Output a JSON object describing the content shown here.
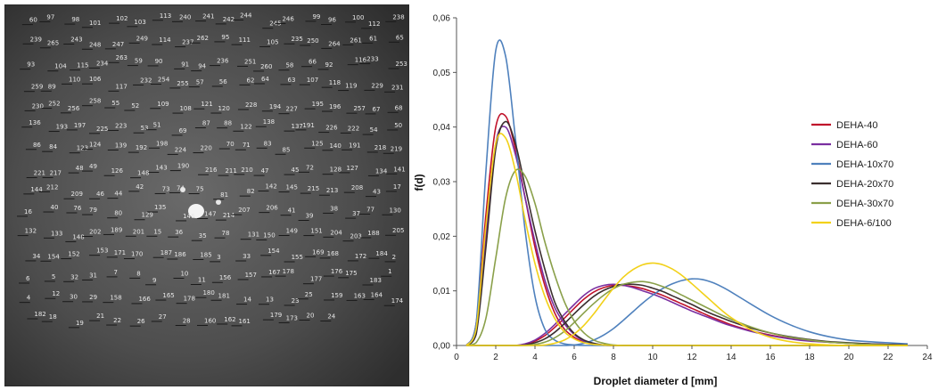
{
  "photo": {
    "description_icon": "droplet-photo-icon",
    "labels": [
      "60",
      "97",
      "98",
      "101",
      "102",
      "103",
      "113",
      "240",
      "241",
      "242",
      "244",
      "245",
      "246",
      "99",
      "96",
      "100",
      "112",
      "238",
      "239",
      "265",
      "243",
      "248",
      "247",
      "249",
      "114",
      "237",
      "262",
      "95",
      "111",
      "105",
      "235",
      "250",
      "264",
      "261",
      "61",
      "65",
      "93",
      "104",
      "115",
      "234",
      "263",
      "59",
      "90",
      "91",
      "94",
      "236",
      "251",
      "260",
      "58",
      "66",
      "92",
      "116",
      "233",
      "253",
      "259",
      "89",
      "110",
      "106",
      "117",
      "232",
      "254",
      "255",
      "57",
      "56",
      "62",
      "64",
      "63",
      "107",
      "118",
      "119",
      "229",
      "231",
      "230",
      "252",
      "256",
      "258",
      "55",
      "52",
      "109",
      "108",
      "121",
      "120",
      "228",
      "194",
      "227",
      "195",
      "196",
      "257",
      "67",
      "68",
      "136",
      "193",
      "197",
      "225",
      "223",
      "53",
      "51",
      "69",
      "87",
      "88",
      "122",
      "138",
      "137",
      "191",
      "226",
      "222",
      "54",
      "50",
      "86",
      "84",
      "123",
      "124",
      "139",
      "192",
      "198",
      "224",
      "220",
      "70",
      "71",
      "83",
      "85",
      "125",
      "140",
      "191",
      "218",
      "219",
      "221",
      "217",
      "48",
      "49",
      "126",
      "148",
      "143",
      "190",
      "216",
      "211",
      "210",
      "47",
      "45",
      "72",
      "128",
      "127",
      "134",
      "141",
      "144",
      "212",
      "209",
      "46",
      "44",
      "42",
      "73",
      "74",
      "75",
      "81",
      "82",
      "142",
      "145",
      "215",
      "213",
      "208",
      "43",
      "17",
      "16",
      "40",
      "76",
      "79",
      "80",
      "129",
      "135",
      "146",
      "147",
      "214",
      "207",
      "206",
      "41",
      "39",
      "38",
      "37",
      "77",
      "130",
      "132",
      "133",
      "148",
      "202",
      "189",
      "201",
      "15",
      "36",
      "35",
      "78",
      "131",
      "150",
      "149",
      "151",
      "204",
      "203",
      "188",
      "205",
      "34",
      "154",
      "152",
      "153",
      "171",
      "170",
      "187",
      "186",
      "185",
      "3",
      "33",
      "154",
      "155",
      "169",
      "168",
      "172",
      "184",
      "2",
      "6",
      "5",
      "32",
      "31",
      "7",
      "8",
      "9",
      "10",
      "11",
      "156",
      "157",
      "167",
      "178",
      "177",
      "176",
      "175",
      "183",
      "1",
      "4",
      "12",
      "30",
      "29",
      "158",
      "166",
      "165",
      "178",
      "180",
      "181",
      "14",
      "13",
      "23",
      "25",
      "159",
      "163",
      "164",
      "174",
      "182",
      "18",
      "19",
      "21",
      "22",
      "26",
      "27",
      "28",
      "160",
      "162",
      "161",
      "179",
      "173",
      "20",
      "24"
    ]
  },
  "chart_data": {
    "type": "line",
    "title": "",
    "xlabel": "Droplet diameter d [mm]",
    "ylabel": "f(d)",
    "xlim": [
      0,
      24
    ],
    "ylim": [
      0,
      0.06
    ],
    "xticks": [
      "0",
      "2",
      "4",
      "6",
      "8",
      "10",
      "12",
      "14",
      "16",
      "18",
      "20",
      "22",
      "24"
    ],
    "yticks": [
      "0,00",
      "0,01",
      "0,02",
      "0,03",
      "0,04",
      "0,05",
      "0,06"
    ],
    "grid": false,
    "legend_position": "right",
    "x": [
      0.5,
      1.0,
      1.5,
      2.0,
      2.5,
      3.0,
      3.5,
      4.0,
      4.5,
      5.0,
      5.5,
      6.0,
      6.5,
      7.0,
      7.5,
      8.0,
      8.5,
      9.0,
      9.5,
      10.0,
      10.5,
      11.0,
      11.5,
      12.0,
      12.5,
      13.0,
      13.5,
      14.0,
      15.0,
      16.0,
      17.0,
      18.0,
      19.0,
      20.0,
      21.0,
      22.0,
      23.0
    ],
    "series": [
      {
        "name": "DEHA-40",
        "color": "#c0122b",
        "peaks": [
          {
            "values": [
              0,
              0.004,
              0.024,
              0.04,
              0.042,
              0.036,
              0.027,
              0.018,
              0.011,
              0.006,
              0.003,
              0.0015,
              0.0006,
              0.0002,
              0.0001,
              0,
              0,
              0,
              0,
              0,
              0,
              0,
              0,
              0,
              0,
              0,
              0,
              0,
              0,
              0,
              0,
              0,
              0,
              0,
              0,
              0,
              0
            ]
          },
          {
            "values": [
              0,
              0,
              0,
              0,
              0,
              0,
              0.0002,
              0.0008,
              0.0018,
              0.0033,
              0.005,
              0.0068,
              0.0085,
              0.0098,
              0.0106,
              0.011,
              0.011,
              0.0108,
              0.0104,
              0.0098,
              0.0092,
              0.0084,
              0.0076,
              0.0068,
              0.006,
              0.0052,
              0.0045,
              0.0038,
              0.0027,
              0.0019,
              0.0013,
              0.0009,
              0.0006,
              0.0004,
              0.0003,
              0.0002,
              0.0001
            ]
          }
        ]
      },
      {
        "name": "DEHA-60",
        "color": "#7a2fa0",
        "peaks": [
          {
            "values": [
              0,
              0.003,
              0.02,
              0.037,
              0.04,
              0.035,
              0.027,
              0.019,
              0.012,
              0.007,
              0.004,
              0.002,
              0.0008,
              0.0003,
              0.0001,
              0,
              0,
              0,
              0,
              0,
              0,
              0,
              0,
              0,
              0,
              0,
              0,
              0,
              0,
              0,
              0,
              0,
              0,
              0,
              0,
              0,
              0
            ]
          },
          {
            "values": [
              0,
              0,
              0,
              0,
              0,
              0,
              0.0003,
              0.001,
              0.0022,
              0.0038,
              0.0057,
              0.0075,
              0.0092,
              0.0104,
              0.011,
              0.0112,
              0.011,
              0.0106,
              0.01,
              0.0094,
              0.0087,
              0.0079,
              0.0071,
              0.0063,
              0.0056,
              0.0049,
              0.0042,
              0.0036,
              0.0026,
              0.0018,
              0.0012,
              0.0008,
              0.0006,
              0.0004,
              0.0003,
              0.0002,
              0.0001
            ]
          }
        ]
      },
      {
        "name": "DEHA-10x70",
        "color": "#4f81bd",
        "peaks": [
          {
            "values": [
              0,
              0.004,
              0.032,
              0.054,
              0.053,
              0.038,
              0.021,
              0.009,
              0.003,
              0.001,
              0.0003,
              0.0001,
              0,
              0,
              0,
              0,
              0,
              0,
              0,
              0,
              0,
              0,
              0,
              0,
              0,
              0,
              0,
              0,
              0,
              0,
              0,
              0,
              0,
              0,
              0,
              0,
              0
            ]
          },
          {
            "values": [
              0,
              0,
              0,
              0,
              0,
              0,
              0,
              0,
              0,
              0,
              0,
              0.0001,
              0.0004,
              0.001,
              0.0019,
              0.0031,
              0.0046,
              0.0062,
              0.0078,
              0.0092,
              0.0104,
              0.0113,
              0.0119,
              0.0122,
              0.0121,
              0.0116,
              0.0108,
              0.0098,
              0.0076,
              0.0055,
              0.0038,
              0.0025,
              0.0016,
              0.001,
              0.0007,
              0.0005,
              0.0003
            ]
          }
        ]
      },
      {
        "name": "DEHA-20x70",
        "color": "#3b2f2f",
        "peaks": [
          {
            "values": [
              0,
              0.002,
              0.018,
              0.036,
              0.041,
              0.037,
              0.029,
              0.021,
              0.014,
              0.008,
              0.0045,
              0.0022,
              0.001,
              0.0004,
              0.0001,
              0,
              0,
              0,
              0,
              0,
              0,
              0,
              0,
              0,
              0,
              0,
              0,
              0,
              0,
              0,
              0,
              0,
              0,
              0,
              0,
              0,
              0
            ]
          },
          {
            "values": [
              0,
              0,
              0,
              0,
              0,
              0,
              0.0001,
              0.0005,
              0.0012,
              0.0024,
              0.004,
              0.0058,
              0.0075,
              0.009,
              0.0101,
              0.0108,
              0.0112,
              0.0112,
              0.011,
              0.0105,
              0.0099,
              0.0091,
              0.0083,
              0.0075,
              0.0066,
              0.0058,
              0.0051,
              0.0044,
              0.0032,
              0.0023,
              0.0016,
              0.0011,
              0.0007,
              0.0005,
              0.0003,
              0.0002,
              0.0001
            ]
          }
        ]
      },
      {
        "name": "DEHA-30x70",
        "color": "#8aa04a",
        "peaks": [
          {
            "values": [
              0,
              0.0005,
              0.005,
              0.016,
              0.027,
              0.032,
              0.031,
              0.026,
              0.019,
              0.013,
              0.008,
              0.0045,
              0.0023,
              0.001,
              0.0004,
              0.0001,
              0,
              0,
              0,
              0,
              0,
              0,
              0,
              0,
              0,
              0,
              0,
              0,
              0,
              0,
              0,
              0,
              0,
              0,
              0,
              0,
              0
            ]
          },
          {
            "values": [
              0,
              0,
              0,
              0,
              0,
              0,
              0,
              0.0002,
              0.0006,
              0.0014,
              0.0026,
              0.0042,
              0.006,
              0.0077,
              0.0092,
              0.0104,
              0.0112,
              0.0116,
              0.0117,
              0.0114,
              0.0108,
              0.0101,
              0.0092,
              0.0083,
              0.0074,
              0.0065,
              0.0056,
              0.0048,
              0.0034,
              0.0023,
              0.0015,
              0.001,
              0.0006,
              0.0004,
              0.0002,
              0.0001,
              0
            ]
          }
        ]
      },
      {
        "name": "DEHA-6/100",
        "color": "#f2d11a",
        "peaks": [
          {
            "values": [
              0,
              0.003,
              0.022,
              0.037,
              0.038,
              0.032,
              0.023,
              0.015,
              0.009,
              0.005,
              0.0025,
              0.0012,
              0.0005,
              0.0002,
              0.0001,
              0,
              0,
              0,
              0,
              0,
              0,
              0,
              0,
              0,
              0,
              0,
              0,
              0,
              0,
              0,
              0,
              0,
              0,
              0,
              0,
              0,
              0
            ]
          },
          {
            "values": [
              0,
              0,
              0,
              0,
              0,
              0,
              0,
              0,
              0.0001,
              0.0004,
              0.001,
              0.0021,
              0.0037,
              0.0058,
              0.0082,
              0.0105,
              0.0125,
              0.0139,
              0.0148,
              0.0151,
              0.0148,
              0.014,
              0.0128,
              0.0113,
              0.0097,
              0.0081,
              0.0065,
              0.0051,
              0.0029,
              0.0015,
              0.0007,
              0.0003,
              0.0001,
              0,
              0,
              0,
              0
            ]
          }
        ]
      }
    ]
  }
}
